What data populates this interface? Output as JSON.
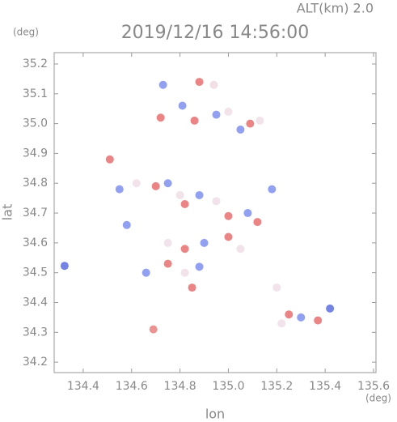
{
  "chart_data": {
    "type": "scatter",
    "title": "2019/12/16 14:56:00",
    "subtitle": "ALT(km) 2.0",
    "x_label": "lon",
    "y_label": "lat",
    "x_unit": "(deg)",
    "y_unit": "(deg)",
    "xlim": [
      134.28,
      135.61
    ],
    "ylim": [
      34.165,
      35.238
    ],
    "xticks": [
      134.4,
      134.6,
      134.8,
      {
        "value": 135,
        "label": "135.0"
      },
      135.2,
      135.4,
      135.6
    ],
    "yticks": [
      {
        "value": 35.2,
        "label": "35.2"
      },
      35.1,
      {
        "value": 35,
        "label": "35.0"
      },
      34.9,
      34.8,
      34.7,
      34.6,
      34.5,
      34.4,
      34.3,
      34.2
    ],
    "x": [
      134.323,
      134.69,
      135.42,
      134.73,
      134.88,
      134.94,
      134.72,
      134.81,
      134.86,
      134.95,
      135.0,
      135.05,
      135.09,
      135.13,
      134.51,
      134.55,
      134.62,
      134.7,
      134.75,
      134.8,
      134.82,
      134.88,
      134.95,
      135.0,
      135.08,
      135.12,
      135.18,
      134.58,
      134.75,
      134.82,
      134.9,
      135.0,
      135.05,
      134.66,
      134.75,
      134.82,
      134.88,
      134.85,
      135.2,
      135.25,
      135.3,
      135.37,
      135.22
    ],
    "values": [
      34.523,
      34.31,
      34.38,
      35.13,
      35.14,
      35.13,
      35.02,
      35.06,
      35.01,
      35.03,
      35.04,
      34.98,
      35.0,
      35.01,
      34.88,
      34.78,
      34.8,
      34.79,
      34.8,
      34.76,
      34.73,
      34.76,
      34.74,
      34.69,
      34.7,
      34.67,
      34.78,
      34.66,
      34.6,
      34.58,
      34.6,
      34.62,
      34.58,
      34.5,
      34.53,
      34.5,
      34.52,
      34.45,
      34.45,
      34.36,
      34.35,
      34.34,
      34.33
    ],
    "colors": [
      "#5a6ee0",
      "#e88080",
      "#5a6ee0",
      "#7f8ff0",
      "#e87070",
      "#f0d8e0",
      "#e87070",
      "#7f8ff0",
      "#e87070",
      "#7f8ff0",
      "#f0dde5",
      "#7f8ff0",
      "#e87070",
      "#f0dde5",
      "#e87070",
      "#7f8ff0",
      "#f0dde5",
      "#e87070",
      "#7f8ff0",
      "#f0dde5",
      "#e87070",
      "#7f8ff0",
      "#f0dde5",
      "#e87070",
      "#7f8ff0",
      "#e87070",
      "#7f8ff0",
      "#7f8ff0",
      "#f0dde5",
      "#e87070",
      "#7f8ff0",
      "#e87070",
      "#f0dde5",
      "#7f8ff0",
      "#e87070",
      "#f0dde5",
      "#7f8ff0",
      "#e87070",
      "#f0dde5",
      "#e87070",
      "#7f8ff0",
      "#e87070",
      "#f0dde5"
    ]
  }
}
